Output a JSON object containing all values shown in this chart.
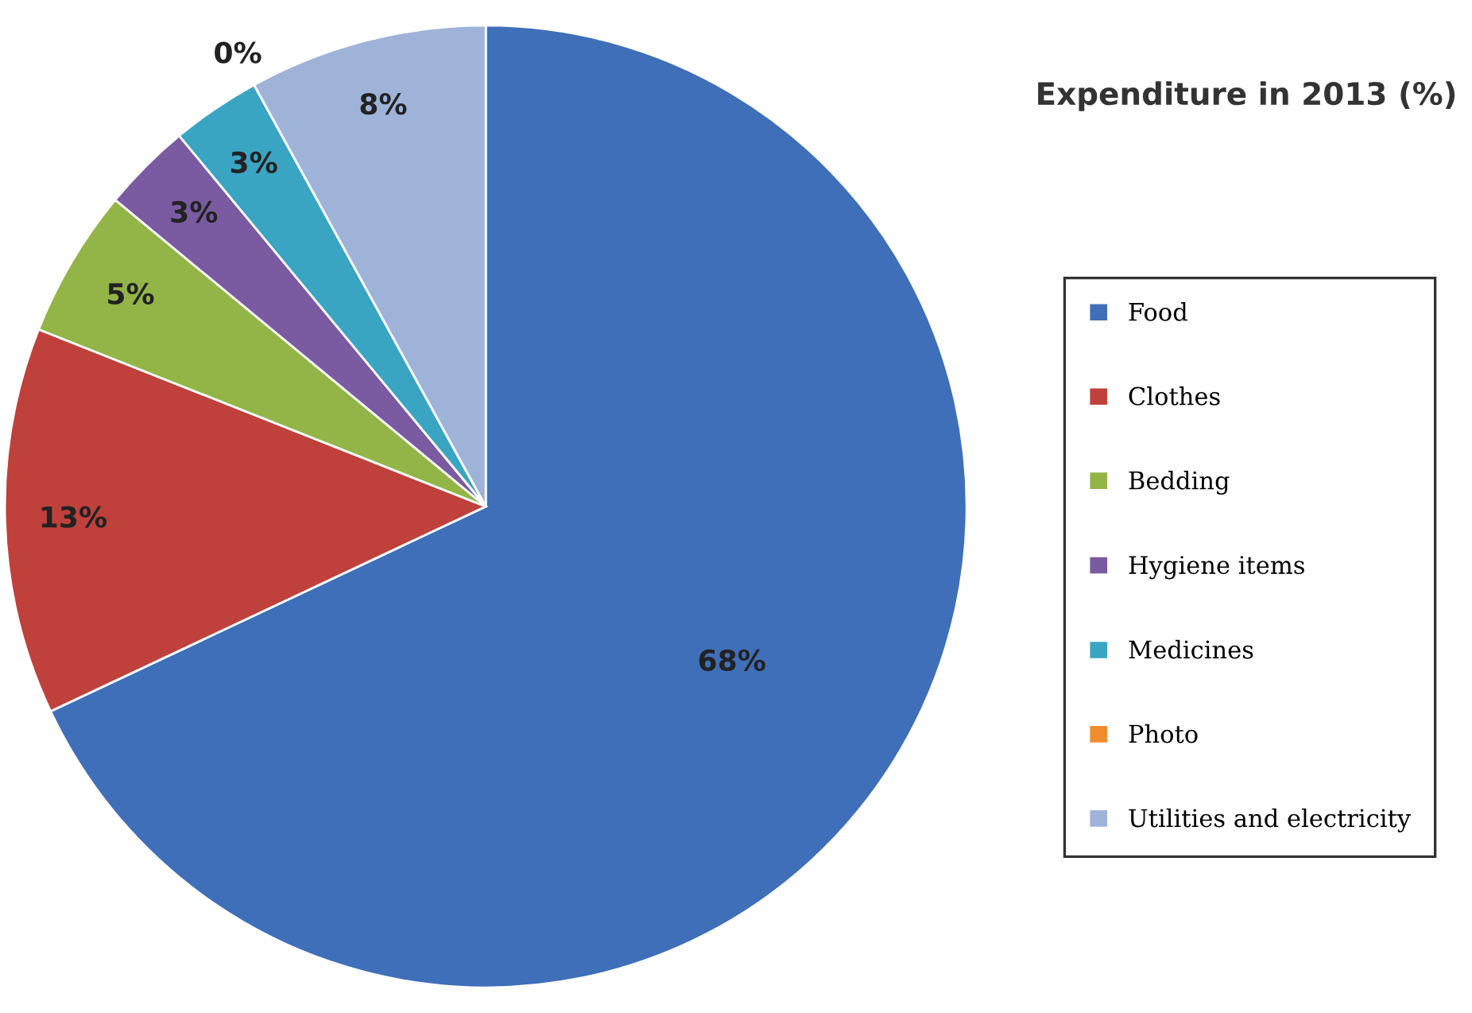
{
  "chart_data": {
    "type": "pie",
    "title": "Expenditure in 2013 (%)",
    "categories": [
      "Food",
      "Clothes",
      "Bedding",
      "Hygiene items",
      "Medicines",
      "Photo",
      "Utilities and electricity"
    ],
    "values": [
      68,
      13,
      5,
      3,
      3,
      0,
      8
    ],
    "colors": [
      "#3f6fb8",
      "#c0403c",
      "#93b548",
      "#7a5aa0",
      "#3aa5c2",
      "#f08c2c",
      "#9fb3d9"
    ],
    "value_labels": [
      "68%",
      "13%",
      "5%",
      "3%",
      "3%",
      "0%",
      "8%"
    ],
    "legend": "right"
  }
}
